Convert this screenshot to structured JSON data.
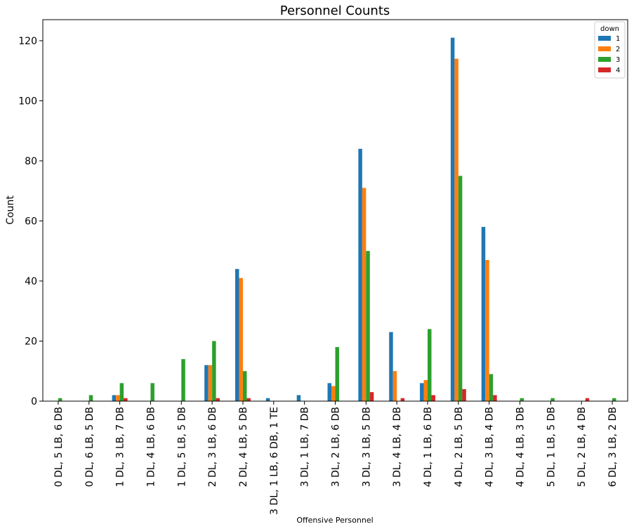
{
  "chart_data": {
    "type": "bar",
    "title": "Personnel Counts",
    "xlabel": "Offensive Personnel",
    "ylabel": "Count",
    "ylim": [
      0,
      127
    ],
    "yticks": [
      0,
      20,
      40,
      60,
      80,
      100,
      120
    ],
    "grid": false,
    "legend": {
      "title": "down",
      "placement": "top-right"
    },
    "categories": [
      "0 DL, 5 LB, 6 DB",
      "0 DL, 6 LB, 5 DB",
      "1 DL, 3 LB, 7 DB",
      "1 DL, 4 LB, 6 DB",
      "1 DL, 5 LB, 5 DB",
      "2 DL, 3 LB, 6 DB",
      "2 DL, 4 LB, 5 DB",
      "3 DL, 1 LB, 6 DB, 1 TE",
      "3 DL, 1 LB, 7 DB",
      "3 DL, 2 LB, 6 DB",
      "3 DL, 3 LB, 5 DB",
      "3 DL, 4 LB, 4 DB",
      "4 DL, 1 LB, 6 DB",
      "4 DL, 2 LB, 5 DB",
      "4 DL, 3 LB, 4 DB",
      "4 DL, 4 LB, 3 DB",
      "5 DL, 1 LB, 5 DB",
      "5 DL, 2 LB, 4 DB",
      "6 DL, 3 LB, 2 DB"
    ],
    "series": [
      {
        "name": "1",
        "color": "#1f77b4",
        "values": [
          0,
          0,
          2,
          0,
          0,
          12,
          44,
          1,
          2,
          6,
          84,
          23,
          6,
          121,
          58,
          0,
          0,
          0,
          0
        ]
      },
      {
        "name": "2",
        "color": "#ff7f0e",
        "values": [
          0,
          0,
          2,
          0,
          0,
          12,
          41,
          0,
          0,
          5,
          71,
          10,
          7,
          114,
          47,
          0,
          0,
          0,
          0
        ]
      },
      {
        "name": "3",
        "color": "#2ca02c",
        "values": [
          1,
          2,
          6,
          6,
          14,
          20,
          10,
          0,
          0,
          18,
          50,
          0,
          24,
          75,
          9,
          1,
          1,
          0,
          1
        ]
      },
      {
        "name": "4",
        "color": "#d62728",
        "values": [
          0,
          0,
          1,
          0,
          0,
          1,
          1,
          0,
          0,
          0,
          3,
          1,
          2,
          4,
          2,
          0,
          0,
          1,
          0
        ]
      }
    ]
  }
}
